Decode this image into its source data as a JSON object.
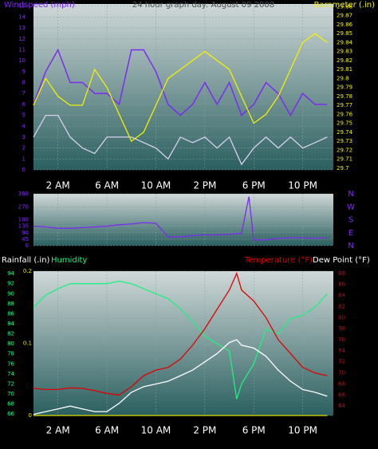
{
  "chart_data": [
    {
      "type": "line",
      "title": "24 hour graph day:  August 09 2008",
      "x": [
        0,
        1,
        2,
        3,
        4,
        5,
        6,
        7,
        8,
        9,
        10,
        11,
        12,
        13,
        14,
        15,
        16,
        17,
        18,
        19,
        20,
        21,
        22,
        23,
        24
      ],
      "xlim": [
        0,
        24.5
      ],
      "xticks": [
        {
          "value": 2,
          "label": "2 AM"
        },
        {
          "value": 6,
          "label": "6 AM"
        },
        {
          "value": 10,
          "label": "10 AM"
        },
        {
          "value": 14,
          "label": "2 PM"
        },
        {
          "value": 18,
          "label": "6 PM"
        },
        {
          "value": 22,
          "label": "10 PM"
        }
      ],
      "ylim": [
        0,
        15.2
      ],
      "yticks": [
        0,
        1,
        2,
        3,
        4,
        5,
        6,
        7,
        8,
        9,
        10,
        11,
        12,
        13,
        14,
        15
      ],
      "y2lim": [
        29.698,
        29.883
      ],
      "y2ticks": [
        29.7,
        29.71,
        29.72,
        29.73,
        29.74,
        29.75,
        29.76,
        29.77,
        29.78,
        29.79,
        29.8,
        29.81,
        29.82,
        29.83,
        29.84,
        29.85,
        29.86,
        29.87,
        29.88
      ],
      "grid": true,
      "series": [
        {
          "name": "Windspeed (mph)",
          "color": "#7b2cf0",
          "values": [
            6,
            9,
            11,
            8,
            8,
            7,
            7,
            6,
            11,
            11,
            9,
            6,
            5,
            6,
            8,
            6,
            8,
            5,
            6,
            8,
            7,
            5,
            7,
            6,
            6
          ]
        },
        {
          "color": "#d8d0f0",
          "values": [
            3,
            5,
            5,
            3,
            2,
            1.5,
            3,
            3,
            3,
            2.5,
            2,
            1,
            3,
            2.5,
            3,
            2,
            3,
            0.5,
            2,
            3,
            2,
            3,
            2,
            2.5,
            3
          ]
        },
        {
          "name": "Barometer (.in)",
          "color": "#f0f000",
          "axis": "y2",
          "values": [
            29.77,
            29.8,
            29.78,
            29.77,
            29.77,
            29.81,
            29.79,
            29.76,
            29.73,
            29.74,
            29.77,
            29.8,
            29.81,
            29.82,
            29.83,
            29.82,
            29.81,
            29.78,
            29.75,
            29.76,
            29.78,
            29.81,
            29.84,
            29.85,
            29.84
          ]
        }
      ]
    },
    {
      "type": "line",
      "x": [
        0,
        1,
        2,
        3,
        4,
        5,
        6,
        7,
        8,
        9,
        10,
        11,
        12,
        13,
        14,
        15,
        16,
        17,
        17.6,
        18,
        19,
        20,
        21,
        22,
        23,
        24
      ],
      "xlim": [
        0,
        24.5
      ],
      "xticks": [
        2,
        6,
        10,
        14,
        18,
        22
      ],
      "ylim": [
        0,
        360
      ],
      "yticks": [
        0,
        45,
        90,
        135,
        180,
        270,
        360
      ],
      "y2lim": [
        0,
        360
      ],
      "y2ticks": [
        {
          "value": 0,
          "label": "N"
        },
        {
          "value": 90,
          "label": "E"
        },
        {
          "value": 180,
          "label": "S"
        },
        {
          "value": 270,
          "label": "W"
        },
        {
          "value": 360,
          "label": "N"
        }
      ],
      "grid": true,
      "series": [
        {
          "color": "#7b2cf0",
          "values": [
            135,
            130,
            120,
            120,
            125,
            130,
            135,
            145,
            150,
            160,
            155,
            60,
            60,
            70,
            75,
            75,
            80,
            85,
            340,
            40,
            40,
            50,
            55,
            55,
            50,
            55
          ]
        }
      ]
    },
    {
      "type": "line",
      "x": [
        0,
        1,
        2,
        3,
        4,
        5,
        6,
        7,
        8,
        9,
        10,
        11,
        12,
        13,
        14,
        15,
        16,
        16.6,
        17,
        18,
        19,
        20,
        21,
        22,
        23,
        24
      ],
      "xlim": [
        0,
        24.5
      ],
      "xticks": [
        {
          "value": 2,
          "label": "2 AM"
        },
        {
          "value": 6,
          "label": "6 AM"
        },
        {
          "value": 10,
          "label": "10 AM"
        },
        {
          "value": 14,
          "label": "2 PM"
        },
        {
          "value": 18,
          "label": "6 PM"
        },
        {
          "value": 22,
          "label": "10 PM"
        }
      ],
      "ylim": [
        0,
        0.2
      ],
      "yticks": [
        0,
        0.1,
        0.2
      ],
      "y2lim": [
        62.3,
        88.4
      ],
      "y2ticks": [
        64,
        66,
        68,
        70,
        72,
        74,
        76,
        78,
        80,
        82,
        84,
        86,
        88
      ],
      "y3lim": [
        65.7,
        94.5
      ],
      "y3ticks": [
        66,
        68,
        70,
        72,
        74,
        76,
        78,
        80,
        82,
        84,
        86,
        88,
        90,
        92,
        94
      ],
      "grid": true,
      "series": [
        {
          "name": "Rainfall (.in)",
          "color": "#e0e000",
          "values": [
            0,
            0,
            0,
            0,
            0,
            0,
            0,
            0,
            0,
            0,
            0,
            0,
            0,
            0,
            0,
            0,
            0,
            0,
            0,
            0,
            0,
            0,
            0,
            0,
            0,
            0
          ]
        },
        {
          "name": "Humidity",
          "color": "#20f080",
          "axis": "y3",
          "values": [
            87.3,
            89.7,
            91,
            92,
            92,
            92,
            92,
            92.5,
            92,
            91,
            90,
            89,
            87,
            84.5,
            81.5,
            80,
            78.6,
            69,
            72,
            76,
            83,
            82,
            85,
            85.7,
            87.3,
            90
          ]
        },
        {
          "name": "Temperature (°F)",
          "color": "#e00000",
          "axis": "y2",
          "values": [
            67.2,
            67,
            67,
            67.3,
            67.2,
            66.8,
            66.3,
            66,
            67.5,
            69.5,
            70.5,
            71,
            72.5,
            75,
            78,
            81.5,
            85,
            88,
            85,
            83,
            80,
            76,
            73.5,
            71,
            70,
            69.5
          ]
        },
        {
          "name": "Dew Point (°F)",
          "color": "#ffffff",
          "axis": "y2",
          "values": [
            62.5,
            63,
            63.5,
            64,
            63.5,
            63,
            63,
            64.5,
            66.5,
            67.5,
            68,
            68.5,
            69.5,
            70.5,
            72,
            73.5,
            75.5,
            76,
            75,
            74.5,
            73,
            70.5,
            68.5,
            67,
            66.5,
            65.8
          ]
        }
      ]
    }
  ]
}
